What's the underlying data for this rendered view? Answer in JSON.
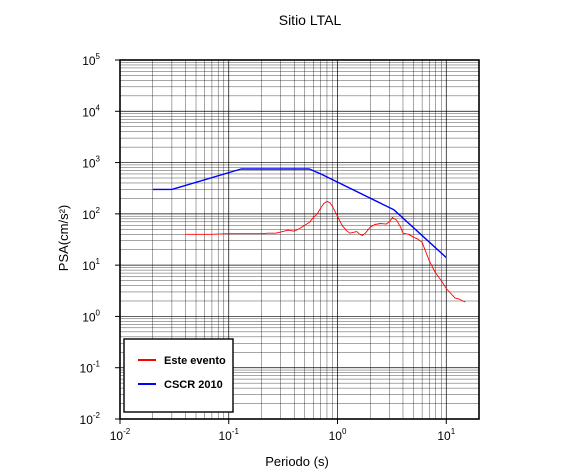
{
  "chart_data": {
    "type": "line",
    "title": "Sitio LTAL",
    "xlabel": "Periodo (s)",
    "ylabel": "PSA(cm/s²)",
    "xscale": "log",
    "yscale": "log",
    "xlim": [
      0.01,
      20
    ],
    "ylim": [
      0.01,
      100000
    ],
    "grid": true,
    "legend_position": "bottom-left",
    "x_ticks": [
      {
        "base": "10",
        "exp": "-2"
      },
      {
        "base": "10",
        "exp": "-1"
      },
      {
        "base": "10",
        "exp": "0"
      },
      {
        "base": "10",
        "exp": "1"
      }
    ],
    "y_ticks": [
      {
        "base": "10",
        "exp": "-2"
      },
      {
        "base": "10",
        "exp": "-1"
      },
      {
        "base": "10",
        "exp": "0"
      },
      {
        "base": "10",
        "exp": "1"
      },
      {
        "base": "10",
        "exp": "2"
      },
      {
        "base": "10",
        "exp": "3"
      },
      {
        "base": "10",
        "exp": "4"
      },
      {
        "base": "10",
        "exp": "5"
      }
    ],
    "series": [
      {
        "name": "Este evento",
        "color": "#ff0000",
        "x": [
          0.04,
          0.05,
          0.07,
          0.1,
          0.13,
          0.16,
          0.2,
          0.23,
          0.27,
          0.3,
          0.35,
          0.4,
          0.45,
          0.5,
          0.55,
          0.6,
          0.65,
          0.7,
          0.75,
          0.8,
          0.85,
          0.9,
          0.95,
          1.0,
          1.1,
          1.2,
          1.3,
          1.5,
          1.6,
          1.7,
          1.8,
          2.0,
          2.2,
          2.5,
          2.8,
          3.0,
          3.2,
          3.5,
          3.8,
          4.0,
          4.5,
          5.0,
          5.5,
          6.0,
          6.5,
          7.0,
          7.5,
          8.0,
          9.0,
          10.0,
          11.0,
          12.0,
          13.0,
          15.0
        ],
        "y": [
          40,
          40,
          40,
          41,
          41,
          41,
          41,
          42,
          42,
          44,
          48,
          46,
          52,
          60,
          68,
          85,
          100,
          130,
          160,
          175,
          165,
          140,
          110,
          90,
          60,
          48,
          42,
          45,
          40,
          38,
          42,
          55,
          62,
          65,
          63,
          70,
          85,
          75,
          55,
          42,
          40,
          35,
          32,
          28,
          18,
          12,
          9,
          7,
          5,
          3.5,
          2.8,
          2.3,
          2.2,
          1.9
        ]
      },
      {
        "name": "CSCR 2010",
        "color": "#0000ff",
        "x": [
          0.02,
          0.03,
          0.13,
          0.55,
          0.7,
          3.3,
          10.0
        ],
        "y": [
          300,
          300,
          750,
          750,
          600,
          120,
          14
        ]
      }
    ]
  }
}
